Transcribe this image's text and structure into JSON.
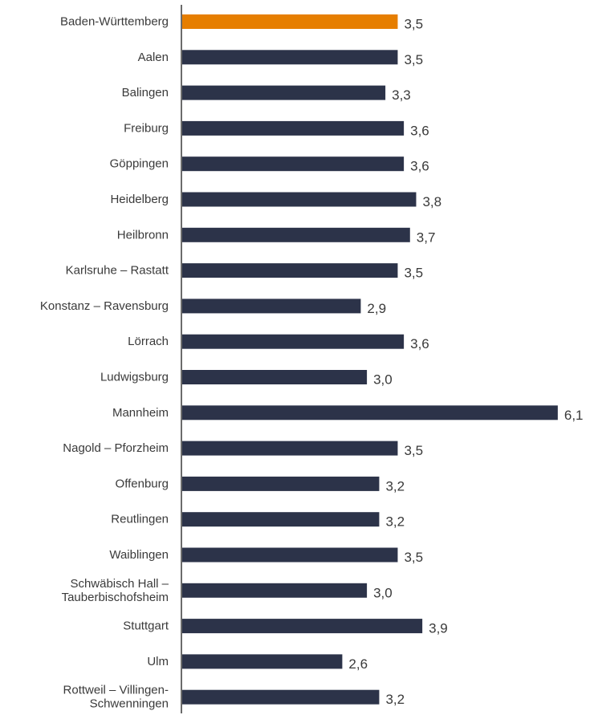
{
  "chart_data": {
    "type": "bar",
    "orientation": "horizontal",
    "categories": [
      "Baden-Württemberg",
      "Aalen",
      "Balingen",
      "Freiburg",
      "Göppingen",
      "Heidelberg",
      "Heilbronn",
      "Karlsruhe – Rastatt",
      "Konstanz – Ravensburg",
      "Lörrach",
      "Ludwigsburg",
      "Mannheim",
      "Nagold – Pforzheim",
      "Offenburg",
      "Reutlingen",
      "Waiblingen",
      "Schwäbisch Hall – Tauberbischofsheim",
      "Stuttgart",
      "Ulm",
      "Rottweil – Villingen-Schwenningen"
    ],
    "category_label_lines": [
      [
        "Baden-Württemberg"
      ],
      [
        "Aalen"
      ],
      [
        "Balingen"
      ],
      [
        "Freiburg"
      ],
      [
        "Göppingen"
      ],
      [
        "Heidelberg"
      ],
      [
        "Heilbronn"
      ],
      [
        "Karlsruhe – Rastatt"
      ],
      [
        "Konstanz – Ravensburg"
      ],
      [
        "Lörrach"
      ],
      [
        "Ludwigsburg"
      ],
      [
        "Mannheim"
      ],
      [
        "Nagold – Pforzheim"
      ],
      [
        "Offenburg"
      ],
      [
        "Reutlingen"
      ],
      [
        "Waiblingen"
      ],
      [
        "Schwäbisch Hall –",
        "Tauberbischofsheim"
      ],
      [
        "Stuttgart"
      ],
      [
        "Ulm"
      ],
      [
        "Rottweil – Villingen-",
        "Schwenningen"
      ]
    ],
    "values": [
      3.5,
      3.5,
      3.3,
      3.6,
      3.6,
      3.8,
      3.7,
      3.5,
      2.9,
      3.6,
      3.0,
      6.1,
      3.5,
      3.2,
      3.2,
      3.5,
      3.0,
      3.9,
      2.6,
      3.2
    ],
    "value_labels": [
      "3,5",
      "3,5",
      "3,3",
      "3,6",
      "3,6",
      "3,8",
      "3,7",
      "3,5",
      "2,9",
      "3,6",
      "3,0",
      "6,1",
      "3,5",
      "3,2",
      "3,2",
      "3,5",
      "3,0",
      "3,9",
      "2,6",
      "3,2"
    ],
    "highlight_index": 0,
    "xlim": [
      0,
      6.1
    ],
    "grid": false,
    "legend": "none",
    "colors": {
      "default_bar": "#2c3349",
      "highlight_bar": "#e67e00",
      "axis": "#3a3a3a",
      "text": "#3a3a3a"
    }
  }
}
